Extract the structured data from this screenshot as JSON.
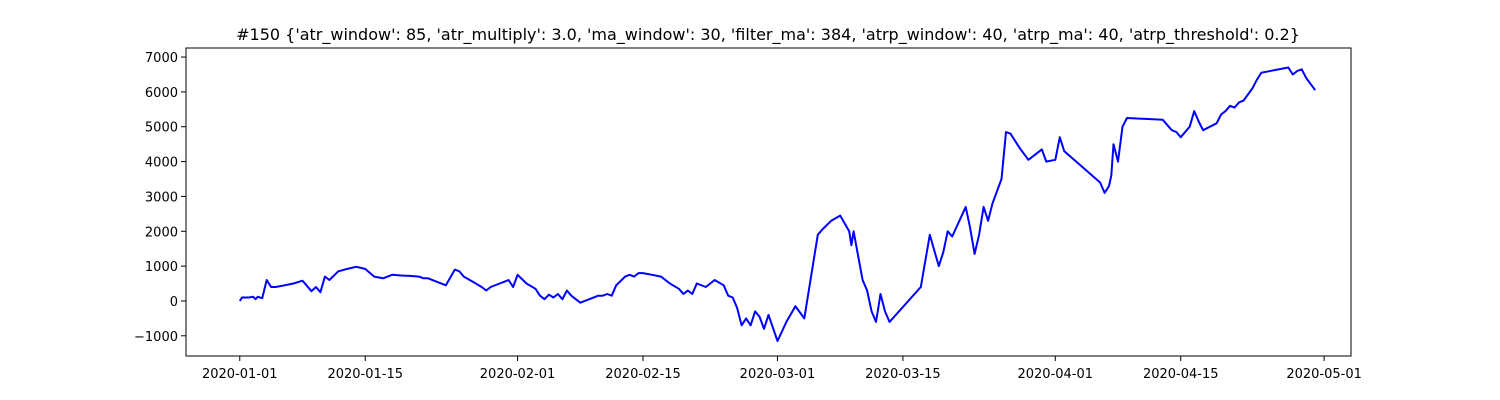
{
  "chart_data": {
    "type": "line",
    "title": "#150 {'atr_window': 85, 'atr_multiply': 3.0, 'ma_window': 30, 'filter_ma': 384, 'atrp_window': 40, 'atrp_ma': 40, 'atrp_threshold': 0.2}",
    "xlabel": "",
    "ylabel": "",
    "xlim": [
      "2019-12-26",
      "2020-05-04"
    ],
    "ylim": [
      -1580,
      7260
    ],
    "grid": false,
    "legend": "none",
    "line_color": "#0000ff",
    "x_ticks": [
      "2020-01-01",
      "2020-01-15",
      "2020-02-01",
      "2020-02-15",
      "2020-03-01",
      "2020-03-15",
      "2020-04-01",
      "2020-04-15",
      "2020-05-01"
    ],
    "y_ticks": [
      -1000,
      0,
      1000,
      2000,
      3000,
      4000,
      5000,
      6000,
      7000
    ],
    "y_tick_labels": [
      "−1000",
      "0",
      "1000",
      "2000",
      "3000",
      "4000",
      "5000",
      "6000",
      "7000"
    ],
    "series": [
      {
        "x": [
          "2020-01-01",
          "2020-01-01 06:00",
          "2020-01-02",
          "2020-01-02 12:00",
          "2020-01-02 18:00",
          "2020-01-03",
          "2020-01-03 12:00",
          "2020-01-04",
          "2020-01-04 12:00",
          "2020-01-05",
          "2020-01-06",
          "2020-01-07",
          "2020-01-08",
          "2020-01-09",
          "2020-01-09 12:00",
          "2020-01-10",
          "2020-01-10 12:00",
          "2020-01-11",
          "2020-01-12",
          "2020-01-13",
          "2020-01-14",
          "2020-01-15",
          "2020-01-16",
          "2020-01-17",
          "2020-01-18",
          "2020-01-19",
          "2020-01-20",
          "2020-01-21",
          "2020-01-21 12:00",
          "2020-01-22",
          "2020-01-23",
          "2020-01-24",
          "2020-01-25",
          "2020-01-25 12:00",
          "2020-01-26",
          "2020-01-27",
          "2020-01-28",
          "2020-01-28 12:00",
          "2020-01-29",
          "2020-01-30",
          "2020-01-30 12:00",
          "2020-01-31",
          "2020-01-31 12:00",
          "2020-02-01",
          "2020-02-02",
          "2020-02-03",
          "2020-02-03 12:00",
          "2020-02-04",
          "2020-02-04 12:00",
          "2020-02-05",
          "2020-02-05 12:00",
          "2020-02-06",
          "2020-02-06 12:00",
          "2020-02-07",
          "2020-02-08",
          "2020-02-09",
          "2020-02-10",
          "2020-02-10 12:00",
          "2020-02-11",
          "2020-02-11 12:00",
          "2020-02-12",
          "2020-02-13",
          "2020-02-13 12:00",
          "2020-02-14",
          "2020-02-14 12:00",
          "2020-02-15",
          "2020-02-16",
          "2020-02-17",
          "2020-02-18",
          "2020-02-19",
          "2020-02-19 12:00",
          "2020-02-20",
          "2020-02-20 12:00",
          "2020-02-21",
          "2020-02-22",
          "2020-02-23",
          "2020-02-24",
          "2020-02-24 12:00",
          "2020-02-25",
          "2020-02-25 12:00",
          "2020-02-26",
          "2020-02-26 12:00",
          "2020-02-27",
          "2020-02-27 12:00",
          "2020-02-28",
          "2020-02-28 12:00",
          "2020-02-29",
          "2020-03-01",
          "2020-03-02",
          "2020-03-03",
          "2020-03-04",
          "2020-03-05",
          "2020-03-05 12:00",
          "2020-03-06",
          "2020-03-07",
          "2020-03-08",
          "2020-03-09",
          "2020-03-09 06:00",
          "2020-03-09 12:00",
          "2020-03-10",
          "2020-03-10 12:00",
          "2020-03-11",
          "2020-03-11 12:00",
          "2020-03-12",
          "2020-03-12 06:00",
          "2020-03-12 12:00",
          "2020-03-13",
          "2020-03-13 12:00",
          "2020-03-17",
          "2020-03-18",
          "2020-03-19",
          "2020-03-19 12:00",
          "2020-03-20",
          "2020-03-20 12:00",
          "2020-03-22",
          "2020-03-22 12:00",
          "2020-03-23",
          "2020-03-23 12:00",
          "2020-03-24",
          "2020-03-24 12:00",
          "2020-03-25",
          "2020-03-26",
          "2020-03-26 12:00",
          "2020-03-27",
          "2020-03-28",
          "2020-03-29",
          "2020-03-30",
          "2020-03-30 12:00",
          "2020-03-31",
          "2020-04-01",
          "2020-04-01 12:00",
          "2020-04-02",
          "2020-04-06",
          "2020-04-06 12:00",
          "2020-04-07",
          "2020-04-07 06:00",
          "2020-04-07 12:00",
          "2020-04-08",
          "2020-04-08 12:00",
          "2020-04-09",
          "2020-04-13",
          "2020-04-14",
          "2020-04-14 12:00",
          "2020-04-15",
          "2020-04-16",
          "2020-04-16 12:00",
          "2020-04-17",
          "2020-04-17 12:00",
          "2020-04-19",
          "2020-04-19 12:00",
          "2020-04-20",
          "2020-04-20 12:00",
          "2020-04-21",
          "2020-04-21 12:00",
          "2020-04-22",
          "2020-04-23",
          "2020-04-23 12:00",
          "2020-04-24",
          "2020-04-27",
          "2020-04-27 12:00",
          "2020-04-28",
          "2020-04-28 12:00",
          "2020-04-29",
          "2020-04-30"
        ],
        "y": [
          0,
          100,
          100,
          120,
          50,
          120,
          80,
          600,
          400,
          400,
          450,
          500,
          580,
          280,
          400,
          250,
          700,
          600,
          850,
          920,
          980,
          920,
          700,
          650,
          750,
          730,
          720,
          700,
          650,
          650,
          550,
          450,
          900,
          850,
          700,
          550,
          400,
          300,
          400,
          500,
          550,
          600,
          400,
          750,
          500,
          350,
          150,
          50,
          180,
          100,
          200,
          50,
          300,
          150,
          -50,
          50,
          150,
          150,
          200,
          150,
          450,
          700,
          750,
          700,
          800,
          800,
          750,
          700,
          500,
          350,
          200,
          300,
          200,
          500,
          400,
          600,
          450,
          150,
          100,
          -200,
          -700,
          -500,
          -700,
          -300,
          -450,
          -800,
          -400,
          -1150,
          -600,
          -150,
          -500,
          1100,
          1900,
          2050,
          2300,
          2450,
          2000,
          1600,
          2000,
          1300,
          600,
          300,
          -300,
          -600,
          -200,
          200,
          -300,
          -600,
          400,
          1900,
          1000,
          1400,
          2000,
          1850,
          2700,
          2100,
          1350,
          1900,
          2700,
          2300,
          2800,
          3500,
          4850,
          4800,
          4400,
          4050,
          4250,
          4350,
          4000,
          4050,
          4700,
          4300,
          3400,
          3100,
          3300,
          3600,
          4500,
          4000,
          5000,
          5250,
          5200,
          4900,
          4850,
          4700,
          5000,
          5450,
          5150,
          4900,
          5100,
          5350,
          5450,
          5600,
          5550,
          5700,
          5750,
          6100,
          6350,
          6550,
          6700,
          6500,
          6600,
          6650,
          6400,
          6050
        ]
      }
    ]
  }
}
